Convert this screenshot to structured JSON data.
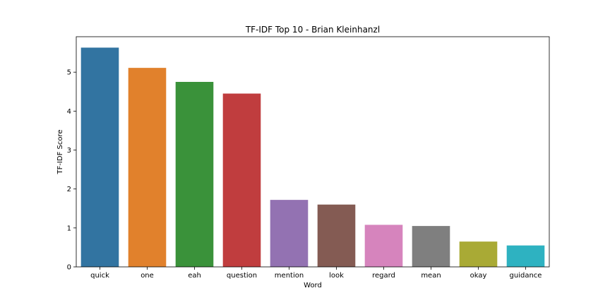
{
  "chart_data": {
    "type": "bar",
    "title": "TF-IDF Top 10 - Brian Kleinhanzl",
    "xlabel": "Word",
    "ylabel": "TF-IDF Score",
    "categories": [
      "quick",
      "one",
      "eah",
      "question",
      "mention",
      "look",
      "regard",
      "mean",
      "okay",
      "guidance"
    ],
    "values": [
      5.63,
      5.11,
      4.75,
      4.45,
      1.72,
      1.6,
      1.08,
      1.05,
      0.65,
      0.55
    ],
    "colors": [
      "#3274a1",
      "#e1812c",
      "#3a923a",
      "#c03d3e",
      "#9372b2",
      "#845b53",
      "#d684bd",
      "#7f7f7f",
      "#a9aa35",
      "#2eb2c1"
    ],
    "ylim": [
      0,
      5.91
    ],
    "yticks": [
      0,
      1,
      2,
      3,
      4,
      5
    ],
    "ytick_labels": [
      "0",
      "1",
      "2",
      "3",
      "4",
      "5"
    ],
    "grid": false,
    "legend": "none"
  }
}
